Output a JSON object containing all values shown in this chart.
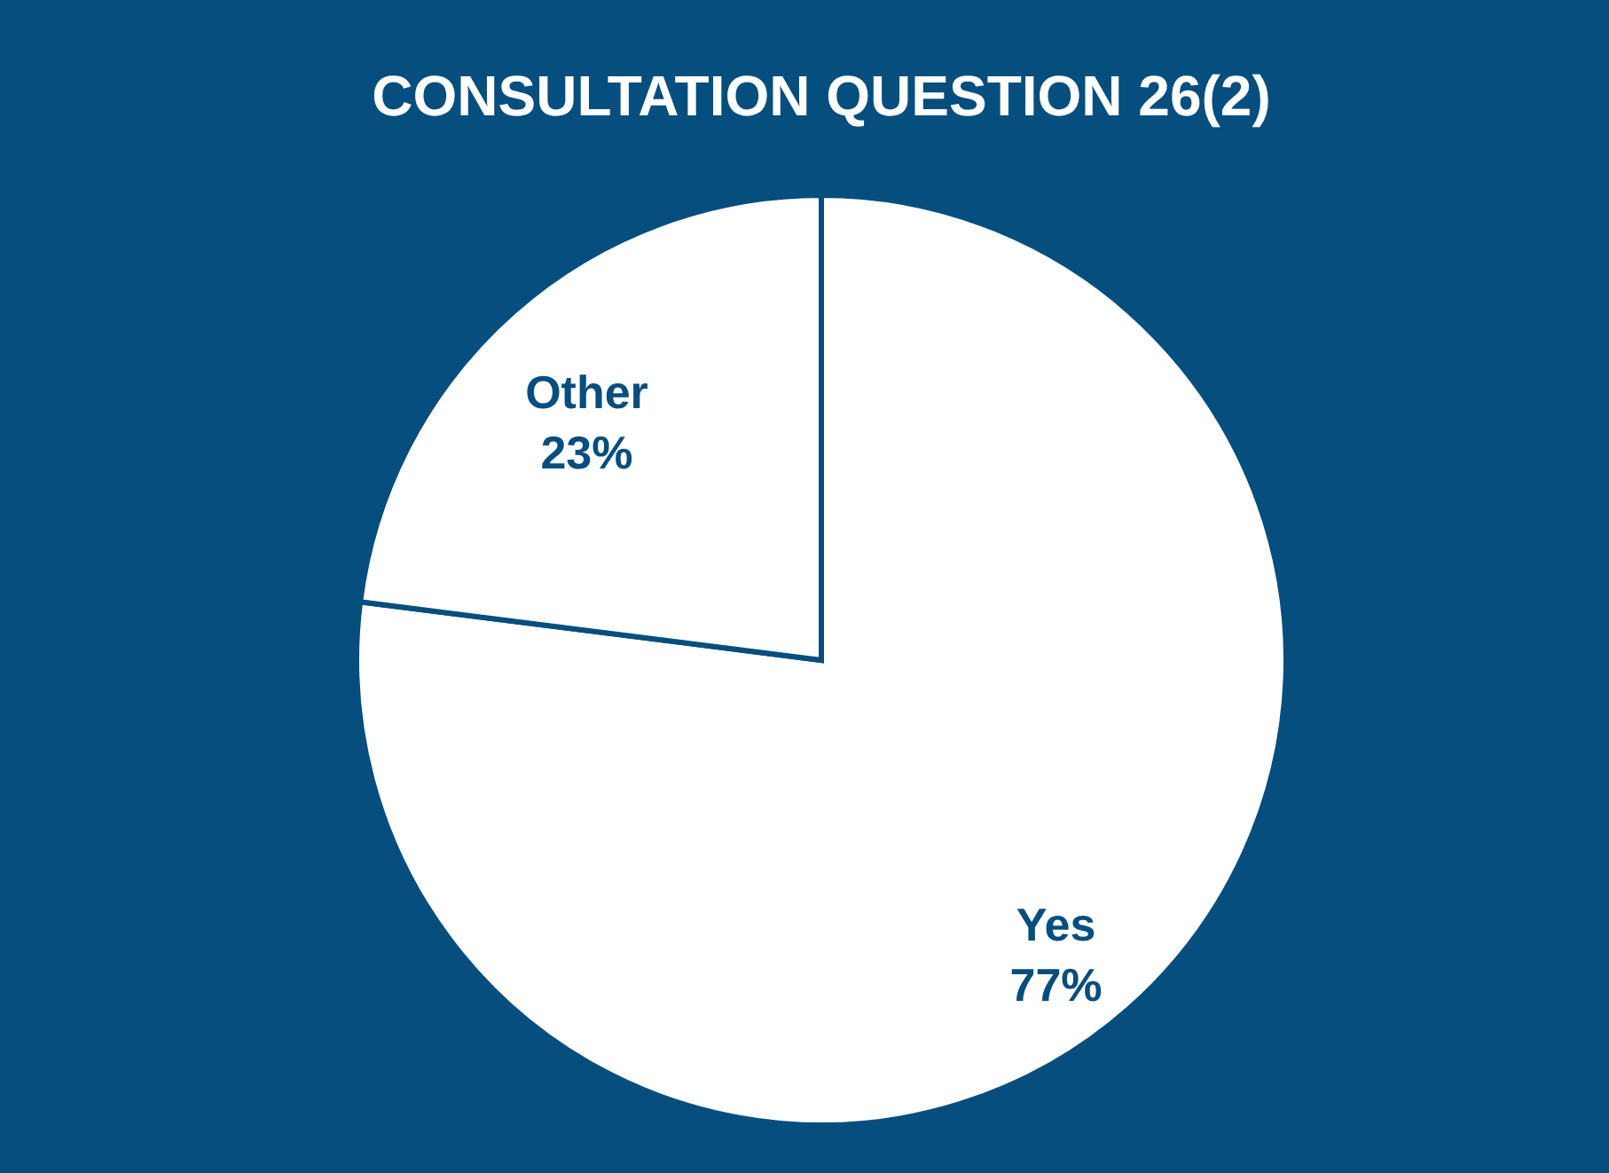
{
  "chart_data": {
    "type": "pie",
    "title": "CONSULTATION QUESTION 26(2)",
    "categories": [
      "Yes",
      "Other"
    ],
    "values": [
      77,
      23
    ],
    "value_labels": [
      "77%",
      "23%"
    ],
    "colors": [
      "#ffffff",
      "#ffffff"
    ]
  }
}
